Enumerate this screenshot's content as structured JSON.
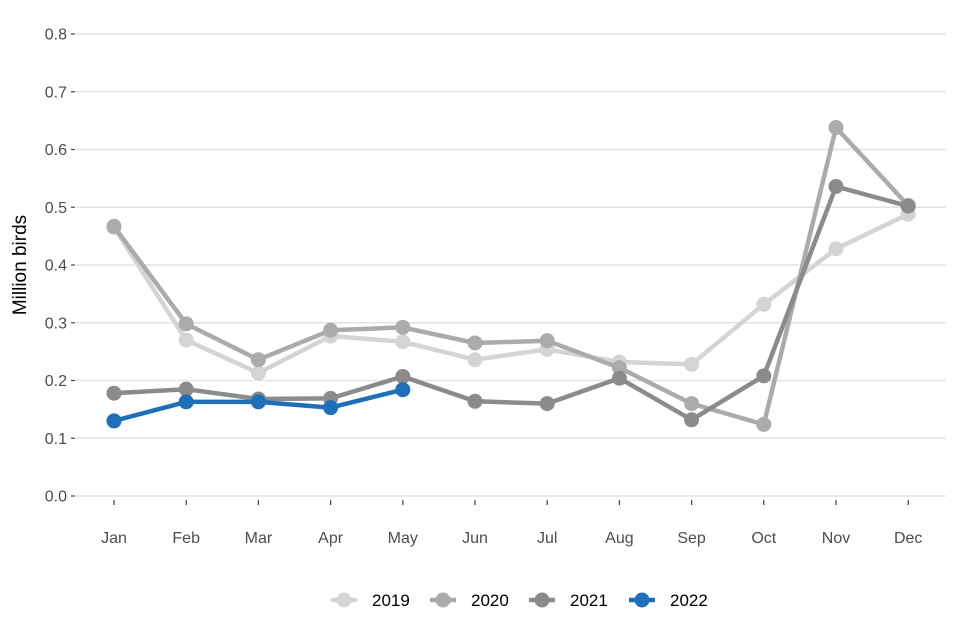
{
  "chart_data": {
    "type": "line",
    "title": "",
    "xlabel": "",
    "ylabel": "Million birds",
    "categories": [
      "Jan",
      "Feb",
      "Mar",
      "Apr",
      "May",
      "Jun",
      "Jul",
      "Aug",
      "Sep",
      "Oct",
      "Nov",
      "Dec"
    ],
    "ylim": [
      0,
      0.8
    ],
    "yticks": [
      "0.0",
      "0.1",
      "0.2",
      "0.3",
      "0.4",
      "0.5",
      "0.6",
      "0.7",
      "0.8"
    ],
    "grid": "horizontal",
    "legend_position": "bottom",
    "series": [
      {
        "name": "2019",
        "color": "#d4d4d4",
        "values": [
          0.465,
          0.27,
          0.213,
          0.277,
          0.267,
          0.236,
          0.254,
          0.232,
          0.228,
          0.332,
          0.428,
          0.488
        ]
      },
      {
        "name": "2020",
        "color": "#ababab",
        "values": [
          0.467,
          0.298,
          0.236,
          0.287,
          0.292,
          0.265,
          0.269,
          0.222,
          0.16,
          0.124,
          0.638,
          0.503
        ]
      },
      {
        "name": "2021",
        "color": "#8c8a8a",
        "values": [
          0.178,
          0.185,
          0.168,
          0.169,
          0.207,
          0.164,
          0.16,
          0.204,
          0.132,
          0.208,
          0.536,
          0.502
        ]
      },
      {
        "name": "2022",
        "color": "#1e6fba",
        "values": [
          0.13,
          0.163,
          0.163,
          0.153,
          0.184,
          null,
          null,
          null,
          null,
          null,
          null,
          null
        ]
      }
    ]
  }
}
